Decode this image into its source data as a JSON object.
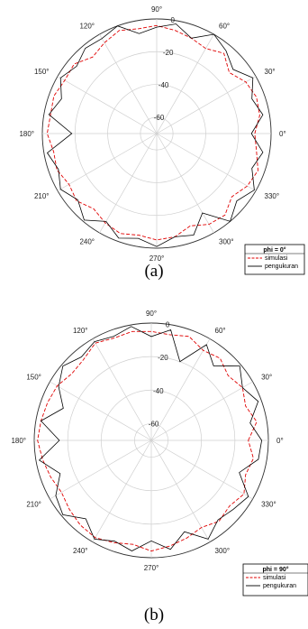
{
  "chart_data": [
    {
      "type": "polar-line",
      "caption": "(a)",
      "legend_title": "phi = 0°",
      "legend_placement": "bottom-right",
      "angle_ticks": [
        "0°",
        "30°",
        "60°",
        "90°",
        "120°",
        "150°",
        "180°",
        "210°",
        "240°",
        "270°",
        "300°",
        "330°"
      ],
      "radial_ticks": [
        "0",
        "-20",
        "-40",
        "-60"
      ],
      "rlim": [
        -70,
        0
      ],
      "angles_deg": [
        0,
        10,
        20,
        30,
        40,
        50,
        60,
        70,
        80,
        90,
        100,
        110,
        120,
        130,
        140,
        150,
        160,
        170,
        180,
        190,
        200,
        210,
        220,
        230,
        240,
        250,
        260,
        270,
        280,
        290,
        300,
        310,
        320,
        330,
        340,
        350
      ],
      "series": [
        {
          "name": "simulasi",
          "color": "#e00000",
          "dash": "4,2",
          "values": [
            -10,
            -6,
            -5,
            -7,
            -12,
            -6,
            -10,
            -8,
            -6,
            -4,
            -5,
            -3,
            -6,
            -9,
            -4,
            -5,
            -3,
            -4,
            -3,
            -6,
            -5,
            -8,
            -6,
            -10,
            -7,
            -5,
            -7,
            -5,
            -6,
            -10,
            -6,
            -5,
            -10,
            -6,
            -4,
            -8
          ]
        },
        {
          "name": "pengukuran",
          "color": "#000000",
          "dash": "",
          "values": [
            -12,
            -4,
            -8,
            -2,
            -9,
            -4,
            0,
            -8,
            -2,
            -5,
            -8,
            0,
            -3,
            -2,
            -6,
            -2,
            -8,
            -3,
            -18,
            -2,
            -6,
            -2,
            -7,
            -1,
            -8,
            -2,
            -5,
            -1,
            -6,
            -4,
            -14,
            0,
            -6,
            -1,
            -8,
            -4
          ]
        }
      ]
    },
    {
      "type": "polar-line",
      "caption": "(b)",
      "legend_title": "phi = 90°",
      "legend_placement": "bottom-right",
      "angle_ticks": [
        "0°",
        "30°",
        "60°",
        "90°",
        "120°",
        "150°",
        "180°",
        "210°",
        "240°",
        "270°",
        "300°",
        "330°"
      ],
      "radial_ticks": [
        "0",
        "-20",
        "-40",
        "-60"
      ],
      "rlim": [
        -70,
        0
      ],
      "angles_deg": [
        0,
        10,
        20,
        30,
        40,
        50,
        60,
        70,
        80,
        90,
        100,
        110,
        120,
        130,
        140,
        150,
        160,
        170,
        180,
        190,
        200,
        210,
        220,
        230,
        240,
        250,
        260,
        270,
        280,
        290,
        300,
        310,
        320,
        330,
        340,
        350
      ],
      "series": [
        {
          "name": "simulasi",
          "color": "#e00000",
          "dash": "4,2",
          "values": [
            -12,
            -6,
            -10,
            -7,
            -10,
            -6,
            -8,
            -4,
            -6,
            -5,
            -4,
            -5,
            -3,
            -7,
            -8,
            -5,
            -4,
            -3,
            -2,
            -4,
            -6,
            -8,
            -6,
            -4,
            -3,
            -5,
            -7,
            -4,
            -6,
            -8,
            -10,
            -7,
            -9,
            -6,
            -10,
            -8
          ]
        },
        {
          "name": "pengukuran",
          "color": "#000000",
          "dash": "",
          "values": [
            -4,
            -10,
            -2,
            -7,
            -1,
            -12,
            -4,
            -20,
            -3,
            -8,
            -1,
            -4,
            -2,
            -5,
            -1,
            -6,
            -14,
            -3,
            -15,
            -2,
            -12,
            -4,
            -1,
            -9,
            -2,
            -6,
            -3,
            -10,
            -4,
            -12,
            -2,
            -8,
            -6,
            -3,
            -14,
            -5
          ]
        }
      ]
    }
  ]
}
